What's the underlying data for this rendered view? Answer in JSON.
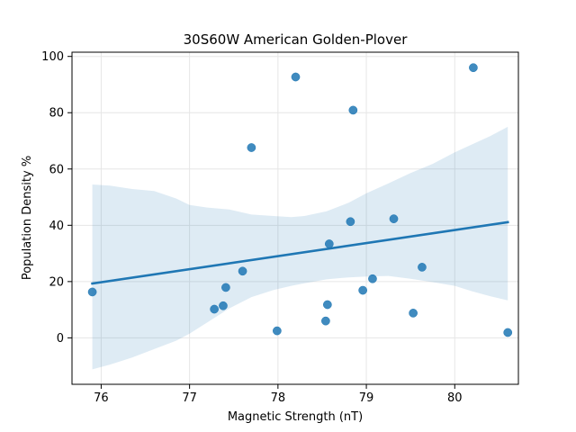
{
  "chart_data": {
    "type": "scatter",
    "title": "30S60W American Golden-Plover",
    "xlabel": "Magnetic Strength (nT)",
    "ylabel": "Population Density %",
    "xlim": [
      75.67,
      80.72
    ],
    "ylim": [
      -16.5,
      101.5
    ],
    "x_ticks": [
      76,
      77,
      78,
      79,
      80
    ],
    "y_ticks": [
      0,
      20,
      40,
      60,
      80,
      100
    ],
    "grid": true,
    "colors": {
      "points": "#1f77b4",
      "line": "#1f77b4",
      "band": "#1f77b4"
    },
    "points": [
      {
        "x": 75.9,
        "y": 16.3
      },
      {
        "x": 77.28,
        "y": 10.2
      },
      {
        "x": 77.38,
        "y": 11.4
      },
      {
        "x": 77.41,
        "y": 17.9
      },
      {
        "x": 77.6,
        "y": 23.7
      },
      {
        "x": 77.7,
        "y": 67.6
      },
      {
        "x": 77.99,
        "y": 2.5
      },
      {
        "x": 78.2,
        "y": 92.7
      },
      {
        "x": 78.54,
        "y": 6.0
      },
      {
        "x": 78.56,
        "y": 11.8
      },
      {
        "x": 78.58,
        "y": 33.4
      },
      {
        "x": 78.82,
        "y": 41.3
      },
      {
        "x": 78.85,
        "y": 80.9
      },
      {
        "x": 78.96,
        "y": 16.9
      },
      {
        "x": 79.07,
        "y": 21.0
      },
      {
        "x": 79.31,
        "y": 42.3
      },
      {
        "x": 79.53,
        "y": 8.8
      },
      {
        "x": 79.63,
        "y": 25.1
      },
      {
        "x": 80.21,
        "y": 96.0
      },
      {
        "x": 80.6,
        "y": 1.9
      }
    ],
    "regression": {
      "x": [
        75.9,
        80.6
      ],
      "y": [
        19.3,
        41.1
      ]
    },
    "confidence_band": {
      "x": [
        75.9,
        76.1,
        76.35,
        76.6,
        76.85,
        77.0,
        77.2,
        77.45,
        77.7,
        77.95,
        78.15,
        78.3,
        78.55,
        78.8,
        79.0,
        79.25,
        79.5,
        79.75,
        80.0,
        80.2,
        80.4,
        80.6
      ],
      "upper": [
        54.5,
        54.1,
        52.9,
        52.2,
        49.5,
        47.2,
        46.3,
        45.6,
        43.8,
        43.3,
        42.9,
        43.3,
        45.0,
        48.0,
        51.4,
        54.9,
        58.6,
        61.8,
        65.9,
        68.8,
        71.7,
        75.0
      ],
      "lower": [
        -11.2,
        -9.5,
        -7.0,
        -4.0,
        -1.0,
        1.5,
        5.5,
        10.5,
        14.5,
        17.0,
        18.5,
        19.4,
        20.8,
        21.5,
        21.8,
        22.0,
        21.0,
        19.8,
        18.5,
        16.5,
        14.8,
        13.3
      ]
    }
  }
}
